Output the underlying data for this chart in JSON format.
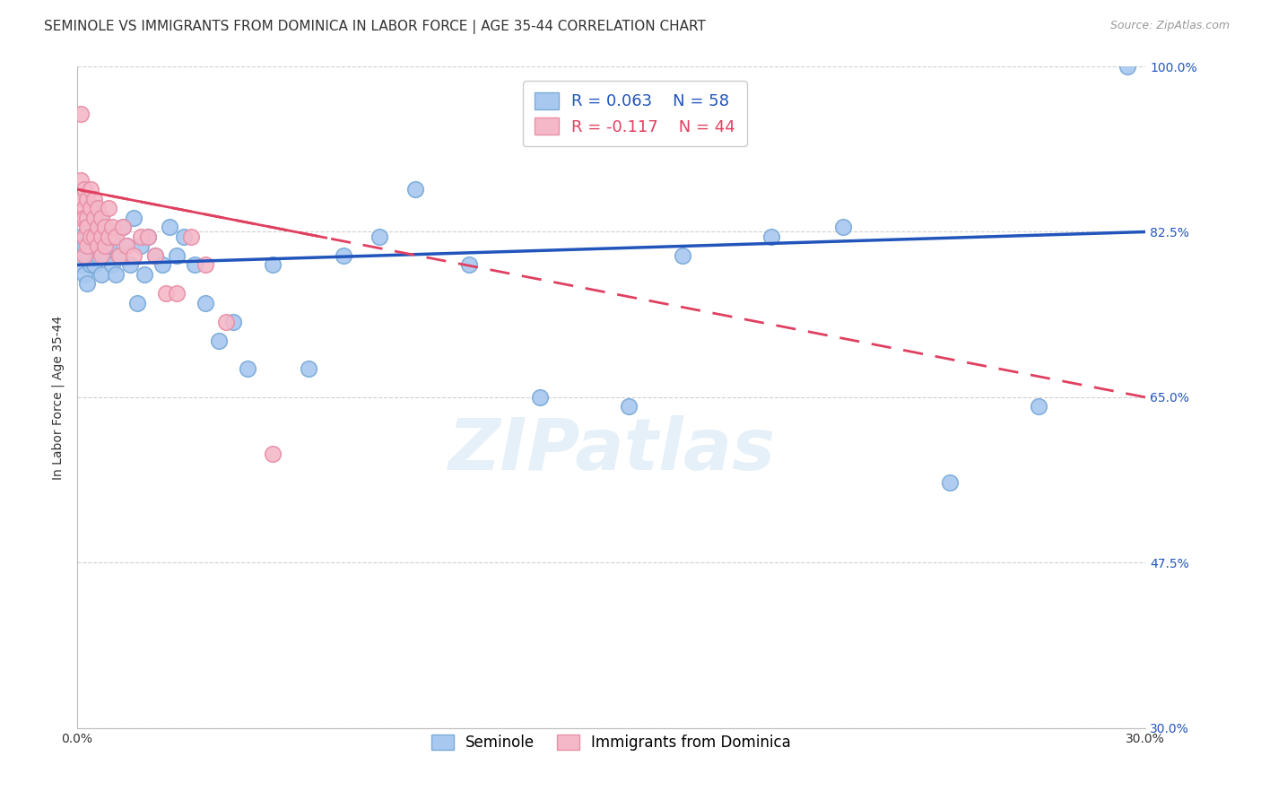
{
  "title": "SEMINOLE VS IMMIGRANTS FROM DOMINICA IN LABOR FORCE | AGE 35-44 CORRELATION CHART",
  "source_text": "Source: ZipAtlas.com",
  "ylabel": "In Labor Force | Age 35-44",
  "xlim": [
    0.0,
    0.3
  ],
  "ylim": [
    0.3,
    1.0
  ],
  "xticks": [
    0.0,
    0.05,
    0.1,
    0.15,
    0.2,
    0.25,
    0.3
  ],
  "xticklabels": [
    "0.0%",
    "",
    "",
    "",
    "",
    "",
    "30.0%"
  ],
  "ytick_positions": [
    1.0,
    0.825,
    0.65,
    0.475,
    0.3
  ],
  "ytick_labels": [
    "100.0%",
    "82.5%",
    "65.0%",
    "47.5%",
    "30.0%"
  ],
  "blue_color": "#a8c8f0",
  "blue_edge_color": "#7aaad8",
  "pink_color": "#f5b8c8",
  "pink_edge_color": "#e890a8",
  "blue_line_color": "#2255bb",
  "pink_line_color": "#e04060",
  "legend_R_blue": "R = 0.063",
  "legend_N_blue": "N = 58",
  "legend_R_pink": "R = -0.117",
  "legend_N_pink": "N = 44",
  "label_blue": "Seminole",
  "label_pink": "Immigrants from Dominica",
  "watermark": "ZIPatlas",
  "blue_x": [
    0.001,
    0.001,
    0.002,
    0.002,
    0.002,
    0.003,
    0.003,
    0.003,
    0.003,
    0.004,
    0.004,
    0.004,
    0.005,
    0.005,
    0.005,
    0.006,
    0.006,
    0.007,
    0.007,
    0.008,
    0.008,
    0.009,
    0.01,
    0.01,
    0.011,
    0.012,
    0.013,
    0.014,
    0.015,
    0.016,
    0.017,
    0.018,
    0.019,
    0.02,
    0.022,
    0.024,
    0.026,
    0.028,
    0.03,
    0.033,
    0.036,
    0.04,
    0.044,
    0.048,
    0.055,
    0.065,
    0.075,
    0.085,
    0.095,
    0.11,
    0.13,
    0.155,
    0.17,
    0.195,
    0.215,
    0.245,
    0.27,
    0.295
  ],
  "blue_y": [
    0.82,
    0.79,
    0.81,
    0.84,
    0.78,
    0.83,
    0.8,
    0.77,
    0.82,
    0.84,
    0.81,
    0.79,
    0.82,
    0.85,
    0.79,
    0.83,
    0.8,
    0.84,
    0.78,
    0.8,
    0.83,
    0.81,
    0.79,
    0.82,
    0.78,
    0.8,
    0.83,
    0.81,
    0.79,
    0.84,
    0.75,
    0.81,
    0.78,
    0.82,
    0.8,
    0.79,
    0.83,
    0.8,
    0.82,
    0.79,
    0.75,
    0.71,
    0.73,
    0.68,
    0.79,
    0.68,
    0.8,
    0.82,
    0.87,
    0.79,
    0.65,
    0.64,
    0.8,
    0.82,
    0.83,
    0.56,
    0.64,
    1.0
  ],
  "pink_x": [
    0.001,
    0.001,
    0.001,
    0.001,
    0.002,
    0.002,
    0.002,
    0.002,
    0.002,
    0.003,
    0.003,
    0.003,
    0.003,
    0.004,
    0.004,
    0.004,
    0.005,
    0.005,
    0.005,
    0.006,
    0.006,
    0.006,
    0.007,
    0.007,
    0.007,
    0.008,
    0.008,
    0.009,
    0.009,
    0.01,
    0.011,
    0.012,
    0.013,
    0.014,
    0.016,
    0.018,
    0.02,
    0.022,
    0.025,
    0.028,
    0.032,
    0.036,
    0.042,
    0.055
  ],
  "pink_y": [
    0.95,
    0.88,
    0.86,
    0.84,
    0.87,
    0.85,
    0.84,
    0.82,
    0.8,
    0.86,
    0.84,
    0.83,
    0.81,
    0.87,
    0.85,
    0.82,
    0.86,
    0.84,
    0.82,
    0.85,
    0.83,
    0.81,
    0.84,
    0.82,
    0.8,
    0.83,
    0.81,
    0.85,
    0.82,
    0.83,
    0.82,
    0.8,
    0.83,
    0.81,
    0.8,
    0.82,
    0.82,
    0.8,
    0.76,
    0.76,
    0.82,
    0.79,
    0.73,
    0.59
  ],
  "grid_color": "#d0d0d0",
  "bg_color": "#ffffff",
  "title_fontsize": 11,
  "axis_label_fontsize": 10,
  "tick_fontsize": 10
}
